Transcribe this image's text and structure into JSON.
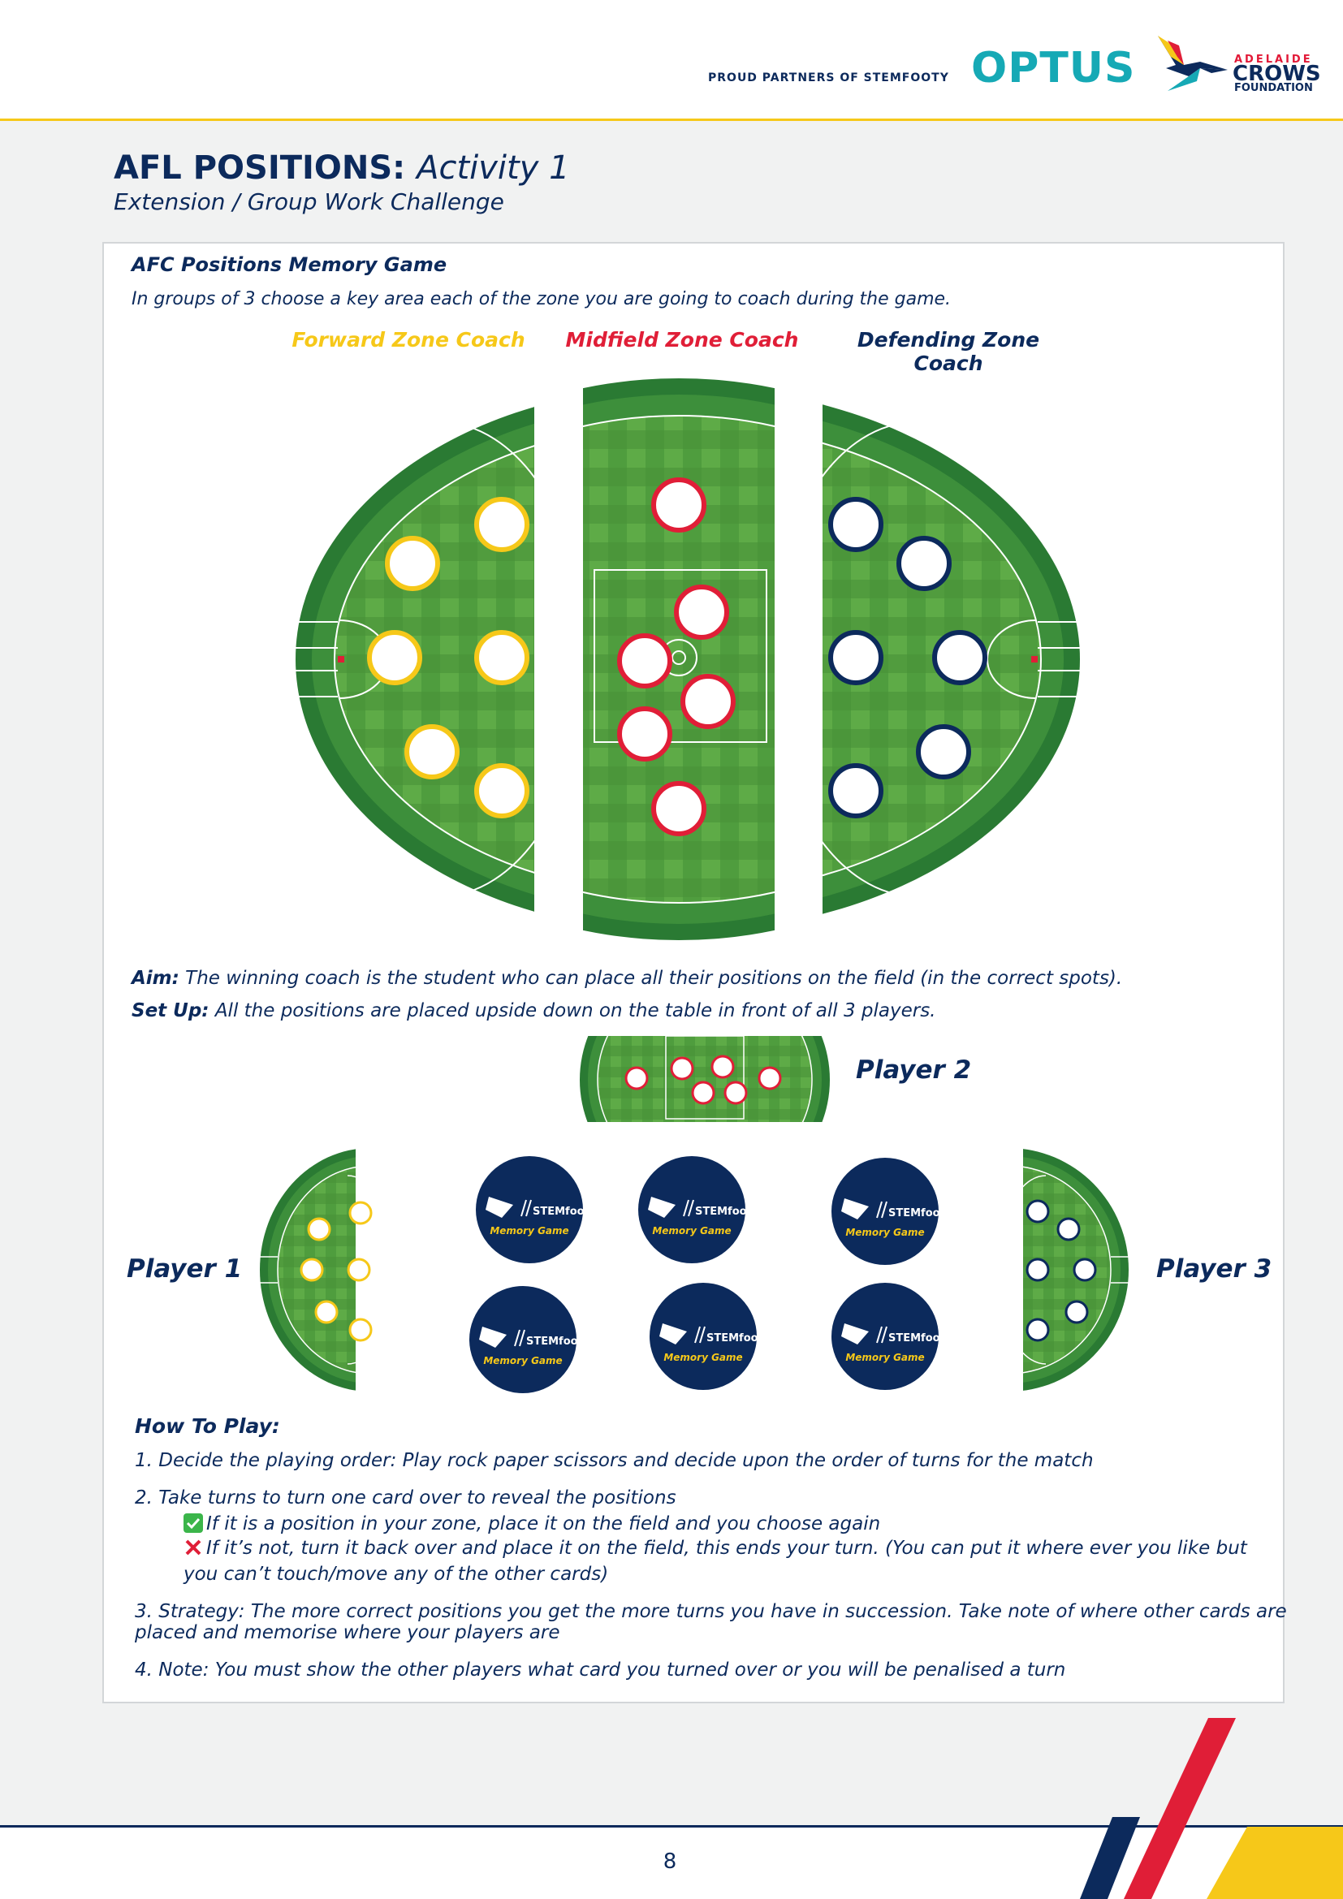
{
  "header": {
    "partner_text": "PROUD PARTNERS OF STEMFOOTY",
    "optus": "OPTUS",
    "crows_small": "ADELAIDE",
    "crows_big": "CROWS",
    "crows_found": "FOUNDATION"
  },
  "title": {
    "main": "AFL POSITIONS:",
    "activity": "Activity 1"
  },
  "subtitle": "Extension / Group Work Challenge",
  "game": {
    "heading": "AFC Positions Memory Game",
    "intro": "In groups of 3 choose a key area each of the zone you are going to coach during the game.",
    "zones": [
      "Forward Zone Coach",
      "Midfield Zone Coach",
      "Defending Zone Coach"
    ]
  },
  "aim": {
    "label": "Aim:",
    "text": "The winning coach is the student who can place all their positions on the field (in the correct spots)."
  },
  "setup": {
    "label": "Set Up:",
    "text": "All the positions are placed upside down on the table in front of all 3 players."
  },
  "players": [
    "Player 1",
    "Player 2",
    "Player 3"
  ],
  "memory_card": {
    "brand": "STEMfooty",
    "label": "Memory Game"
  },
  "how_to_play": {
    "heading": "How To Play:",
    "rule1": "1. Decide the playing order: Play rock paper scissors and decide upon the order of turns for the match",
    "rule2": "2. Take turns to turn one card over to reveal the positions",
    "rule2_yes": "If it is a position in your zone, place it on the field and you choose again",
    "rule2_no": "If it’s not, turn it back over and place it on the field, this ends your turn. (You can put it where ever you like but",
    "rule2_no_cont": "you can’t touch/move any of the other cards)",
    "rule3": "3. Strategy: The more correct positions you get the more turns you have in succession. Take note of where other cards are",
    "rule3_cont": "placed and memorise where your players are",
    "rule4": "4. Note: You must show the other players what card you turned over or you will be penalised a turn"
  },
  "page_number": "8",
  "colors": {
    "navy": "#0c2a5c",
    "yellow": "#f6c819",
    "red": "#e01e37",
    "teal": "#16a9b5",
    "grass_dark": "#2f8a3a",
    "grass_light": "#6fb04a"
  }
}
